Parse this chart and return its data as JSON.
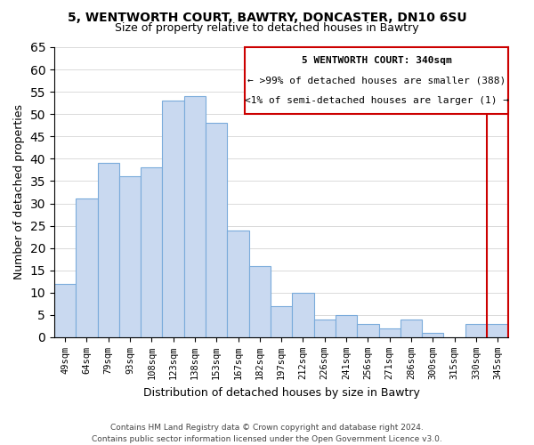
{
  "title": "5, WENTWORTH COURT, BAWTRY, DONCASTER, DN10 6SU",
  "subtitle": "Size of property relative to detached houses in Bawtry",
  "xlabel": "Distribution of detached houses by size in Bawtry",
  "ylabel": "Number of detached properties",
  "bar_labels": [
    "49sqm",
    "64sqm",
    "79sqm",
    "93sqm",
    "108sqm",
    "123sqm",
    "138sqm",
    "153sqm",
    "167sqm",
    "182sqm",
    "197sqm",
    "212sqm",
    "226sqm",
    "241sqm",
    "256sqm",
    "271sqm",
    "286sqm",
    "300sqm",
    "315sqm",
    "330sqm",
    "345sqm"
  ],
  "bar_values": [
    12,
    31,
    39,
    36,
    38,
    53,
    54,
    48,
    24,
    16,
    7,
    10,
    4,
    5,
    3,
    2,
    4,
    1,
    0,
    3,
    3
  ],
  "bar_color": "#c9d9f0",
  "bar_edge_color": "#7aabdb",
  "highlight_bar_index": 20,
  "highlight_edge_color": "#cc0000",
  "vline_color": "#cc0000",
  "legend_title": "5 WENTWORTH COURT: 340sqm",
  "legend_line1": "← >99% of detached houses are smaller (388)",
  "legend_line2": "<1% of semi-detached houses are larger (1) →",
  "legend_box_color": "#cc0000",
  "footer_line1": "Contains HM Land Registry data © Crown copyright and database right 2024.",
  "footer_line2": "Contains public sector information licensed under the Open Government Licence v3.0.",
  "ylim": [
    0,
    65
  ],
  "yticks": [
    0,
    5,
    10,
    15,
    20,
    25,
    30,
    35,
    40,
    45,
    50,
    55,
    60,
    65
  ]
}
